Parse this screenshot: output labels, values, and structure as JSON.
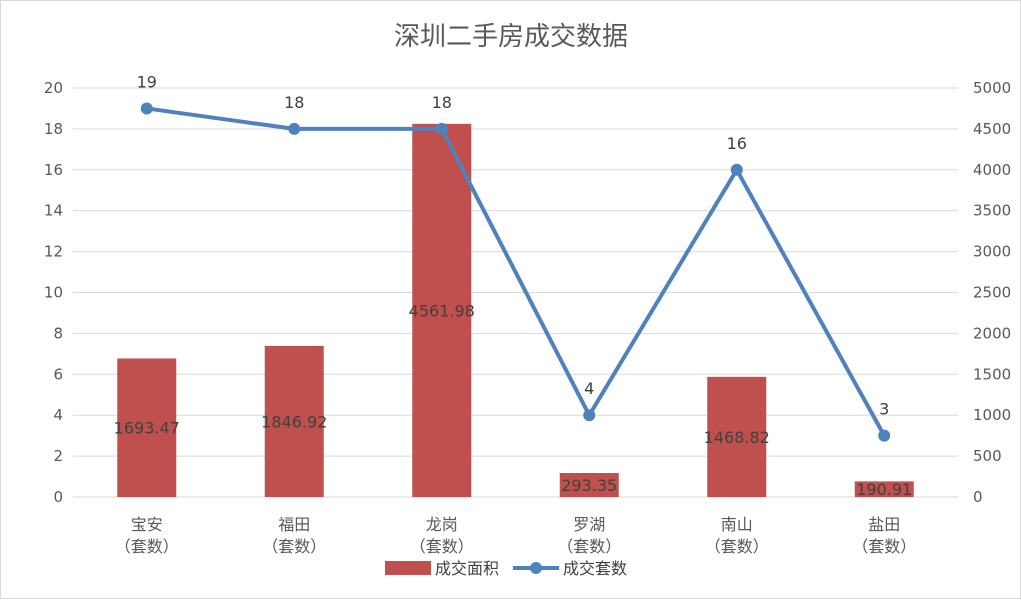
{
  "chart_data": {
    "type": "bar",
    "title": "深圳二手房成交数据",
    "categories": [
      [
        "宝安",
        "（套数）"
      ],
      [
        "福田",
        "（套数）"
      ],
      [
        "龙岗",
        "（套数）"
      ],
      [
        "罗湖",
        "（套数）"
      ],
      [
        "南山",
        "（套数）"
      ],
      [
        "盐田",
        "（套数）"
      ]
    ],
    "series": [
      {
        "name": "成交面积",
        "type": "bar",
        "axis": "right",
        "values": [
          1693.47,
          1846.92,
          4561.98,
          293.35,
          1468.82,
          190.91
        ],
        "labels": [
          "1693.47",
          "1846.92",
          "4561.98",
          "293.35",
          "1468.82",
          "190.91"
        ],
        "color": "#c0504d"
      },
      {
        "name": "成交套数",
        "type": "line",
        "axis": "left",
        "values": [
          19,
          18,
          18,
          4,
          16,
          3
        ],
        "labels": [
          "19",
          "18",
          "18",
          "4",
          "16",
          "3"
        ],
        "color": "#4f81bd"
      }
    ],
    "y_left": {
      "ylim": [
        0,
        20
      ],
      "ticks": [
        "0",
        "2",
        "4",
        "6",
        "8",
        "10",
        "12",
        "14",
        "16",
        "18",
        "20"
      ]
    },
    "y_right": {
      "ylim": [
        0,
        5000
      ],
      "ticks": [
        "0",
        "500",
        "1000",
        "1500",
        "2000",
        "2500",
        "3000",
        "3500",
        "4000",
        "4500",
        "5000"
      ]
    },
    "grid": true,
    "legend": "bottom",
    "colors": {
      "gridline": "#d9d9d9",
      "axis_text": "#595959",
      "label_text": "#404040"
    }
  }
}
